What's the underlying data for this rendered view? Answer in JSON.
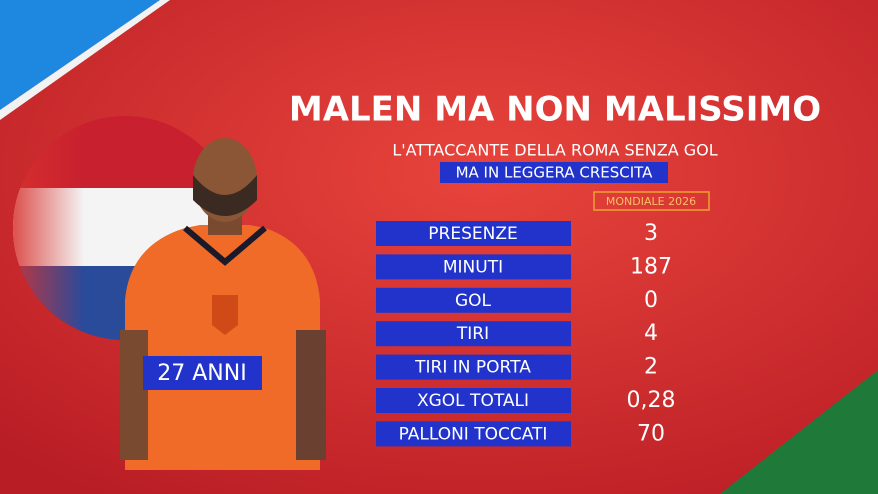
{
  "header": {
    "title": "MALEN MA NON MALISSIMO",
    "subtitle": "L'ATTACCANTE DELLA ROMA SENZA GOL",
    "highlight": "MA IN LEGGERA CRESCITA"
  },
  "player": {
    "age": "27 ANNI"
  },
  "table": {
    "column": "MONDIALE 2026",
    "rows": [
      [
        "PRESENZE",
        "3"
      ],
      [
        "MINUTI",
        "187"
      ],
      [
        "GOL",
        "0"
      ],
      [
        "TIRI",
        "4"
      ],
      [
        "TIRI IN PORTA",
        "2"
      ],
      [
        "XGOL TOTALI",
        "0,28"
      ],
      [
        "PALLONI TOCCATI",
        "70"
      ]
    ]
  }
}
